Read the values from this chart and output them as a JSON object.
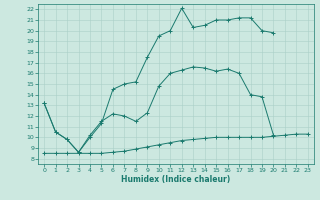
{
  "xlabel": "Humidex (Indice chaleur)",
  "background_color": "#cce8e0",
  "line_color": "#1a7a6e",
  "grid_color": "#aad0c8",
  "xlim": [
    -0.5,
    23.5
  ],
  "ylim": [
    7.5,
    22.5
  ],
  "xticks": [
    0,
    1,
    2,
    3,
    4,
    5,
    6,
    7,
    8,
    9,
    10,
    11,
    12,
    13,
    14,
    15,
    16,
    17,
    18,
    19,
    20,
    21,
    22,
    23
  ],
  "yticks": [
    8,
    9,
    10,
    11,
    12,
    13,
    14,
    15,
    16,
    17,
    18,
    19,
    20,
    21,
    22
  ],
  "line1_x": [
    0,
    1,
    2,
    3,
    4,
    5,
    6,
    7,
    8,
    9,
    10,
    11,
    12,
    13,
    14,
    15,
    16,
    17,
    18,
    19,
    20,
    21,
    22,
    23
  ],
  "line1_y": [
    8.5,
    8.5,
    8.5,
    8.5,
    8.5,
    8.5,
    8.6,
    8.7,
    8.9,
    9.1,
    9.3,
    9.5,
    9.7,
    9.8,
    9.9,
    10.0,
    10.0,
    10.0,
    10.0,
    10.0,
    10.1,
    10.2,
    10.3,
    10.3
  ],
  "line2_x": [
    0,
    1,
    2,
    3,
    4,
    5,
    6,
    7,
    8,
    9,
    10,
    11,
    12,
    13,
    14,
    15,
    16,
    17,
    18,
    19,
    20
  ],
  "line2_y": [
    13.2,
    10.5,
    9.8,
    8.6,
    10.2,
    11.5,
    12.2,
    12.0,
    11.5,
    12.3,
    14.8,
    16.0,
    16.3,
    16.6,
    16.5,
    16.2,
    16.4,
    16.0,
    14.0,
    13.8,
    10.2
  ],
  "line3_x": [
    0,
    1,
    2,
    3,
    4,
    5,
    6,
    7,
    8,
    9,
    10,
    11,
    12,
    13,
    14,
    15,
    16,
    17,
    18,
    19,
    20
  ],
  "line3_y": [
    13.2,
    10.5,
    9.8,
    8.6,
    10.0,
    11.3,
    14.5,
    15.0,
    15.2,
    17.5,
    19.5,
    20.0,
    22.1,
    20.3,
    20.5,
    21.0,
    21.0,
    21.2,
    21.2,
    20.0,
    19.8
  ]
}
